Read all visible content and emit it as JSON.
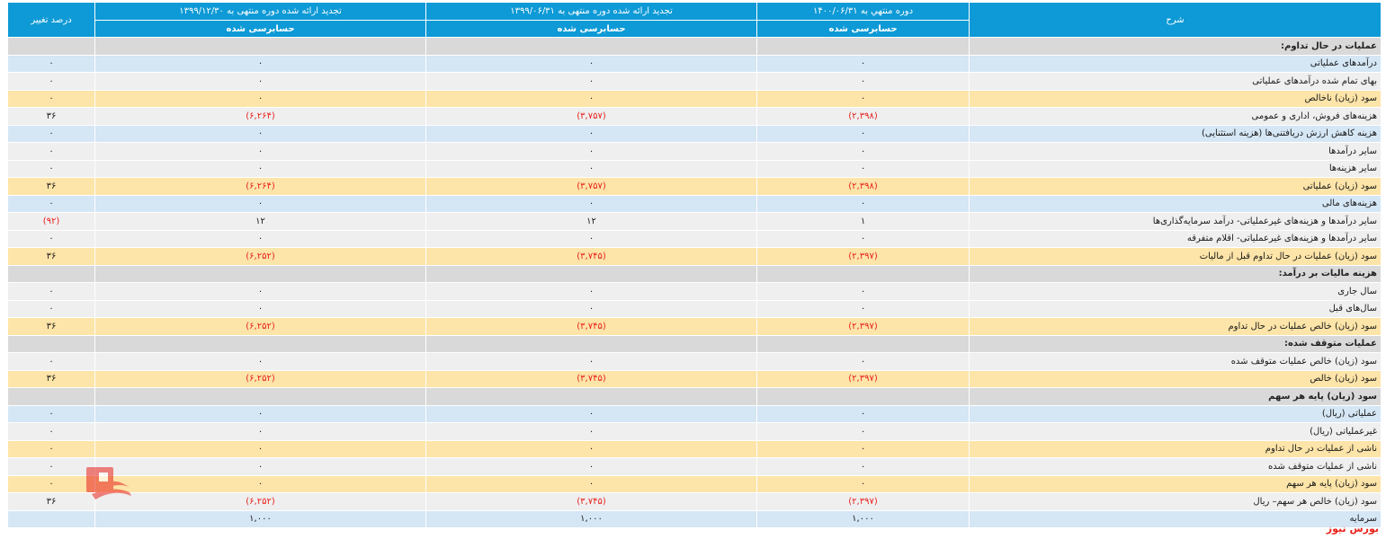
{
  "header": {
    "col_desc": "شرح",
    "col_p1": "دوره منتهي به ۱۴۰۰/۰۶/۳۱",
    "col_p2": "تجدید ارائه شده دوره منتهی به ۱۳۹۹/۰۶/۳۱",
    "col_p3": "تجدید ارائه شده دوره منتهی به ۱۳۹۹/۱۲/۳۰",
    "col_change": "درصد تغییر",
    "audit_p1": "حسابرسی شده",
    "audit_p2": "حسابرسی شده",
    "audit_p3": "حسابرسی شده"
  },
  "rows": [
    {
      "type": "section",
      "desc": "عملیات در حال تداوم:",
      "p1": "",
      "p2": "",
      "p3": "",
      "change": ""
    },
    {
      "type": "blue",
      "desc": "درآمدهای عملیاتی",
      "p1": "۰",
      "p2": "۰",
      "p3": "۰",
      "change": "۰"
    },
    {
      "type": "grey",
      "desc": "بهای تمام شده درآمدهای عملیاتی",
      "p1": "۰",
      "p2": "۰",
      "p3": "۰",
      "change": "۰"
    },
    {
      "type": "yellow",
      "desc": "سود (زیان) ناخالص",
      "p1": "۰",
      "p2": "۰",
      "p3": "۰",
      "change": "۰"
    },
    {
      "type": "grey",
      "desc": "هزینه‌های فروش، اداری و عمومی",
      "p1": "(۲,۳۹۸)",
      "p2": "(۳,۷۵۷)",
      "p3": "(۶,۲۶۴)",
      "change": "۳۶"
    },
    {
      "type": "blue",
      "desc": "هزینه کاهش ارزش دریافتنی‌ها (هزینه استثنایی)",
      "p1": "۰",
      "p2": "۰",
      "p3": "۰",
      "change": "۰"
    },
    {
      "type": "grey",
      "desc": "سایر درآمدها",
      "p1": "۰",
      "p2": "۰",
      "p3": "۰",
      "change": "۰"
    },
    {
      "type": "grey",
      "desc": "سایر هزینه‌ها",
      "p1": "۰",
      "p2": "۰",
      "p3": "۰",
      "change": "۰"
    },
    {
      "type": "yellow",
      "desc": "سود (زیان) عملیاتی",
      "p1": "(۲,۳۹۸)",
      "p2": "(۳,۷۵۷)",
      "p3": "(۶,۲۶۴)",
      "change": "۳۶"
    },
    {
      "type": "blue",
      "desc": "هزینه‌های مالی",
      "p1": "۰",
      "p2": "۰",
      "p3": "۰",
      "change": "۰"
    },
    {
      "type": "grey",
      "desc": "سایر درآمدها و هزینه‌های غیرعملیاتی- درآمد سرمایه‌گذاری‌ها",
      "p1": "۱",
      "p2": "۱۲",
      "p3": "۱۲",
      "change": "(۹۲)"
    },
    {
      "type": "grey",
      "desc": "سایر درآمدها و هزینه‌های غیرعملیاتی- اقلام متفرقه",
      "p1": "۰",
      "p2": "۰",
      "p3": "۰",
      "change": "۰"
    },
    {
      "type": "yellow",
      "desc": "سود (زیان) عملیات در حال تداوم قبل از مالیات",
      "p1": "(۲,۳۹۷)",
      "p2": "(۳,۷۴۵)",
      "p3": "(۶,۲۵۲)",
      "change": "۳۶"
    },
    {
      "type": "section",
      "desc": "هزینه مالیات بر درآمد:",
      "p1": "",
      "p2": "",
      "p3": "",
      "change": ""
    },
    {
      "type": "grey",
      "desc": "سال جاری",
      "p1": "۰",
      "p2": "۰",
      "p3": "۰",
      "change": "۰"
    },
    {
      "type": "grey",
      "desc": "سال‌های قبل",
      "p1": "۰",
      "p2": "۰",
      "p3": "۰",
      "change": "۰"
    },
    {
      "type": "yellow",
      "desc": "سود (زیان) خالص عملیات در حال تداوم",
      "p1": "(۲,۳۹۷)",
      "p2": "(۳,۷۴۵)",
      "p3": "(۶,۲۵۲)",
      "change": "۳۶"
    },
    {
      "type": "section",
      "desc": "عملیات متوقف شده:",
      "p1": "",
      "p2": "",
      "p3": "",
      "change": ""
    },
    {
      "type": "grey",
      "desc": "سود (زیان) خالص عملیات متوقف شده",
      "p1": "۰",
      "p2": "۰",
      "p3": "۰",
      "change": "۰"
    },
    {
      "type": "yellow",
      "desc": "سود (زیان) خالص",
      "p1": "(۲,۳۹۷)",
      "p2": "(۳,۷۴۵)",
      "p3": "(۶,۲۵۲)",
      "change": "۳۶"
    },
    {
      "type": "section",
      "desc": "سود (زیان) پایه هر سهم",
      "p1": "",
      "p2": "",
      "p3": "",
      "change": ""
    },
    {
      "type": "blue",
      "desc": "عملیاتی (ریال)",
      "p1": "۰",
      "p2": "۰",
      "p3": "۰",
      "change": "۰"
    },
    {
      "type": "grey",
      "desc": "غیرعملیاتی (ریال)",
      "p1": "۰",
      "p2": "۰",
      "p3": "۰",
      "change": "۰"
    },
    {
      "type": "yellow",
      "desc": "ناشی از عملیات در حال تداوم",
      "p1": "۰",
      "p2": "۰",
      "p3": "۰",
      "change": "۰"
    },
    {
      "type": "grey",
      "desc": "ناشی از عملیات متوقف شده",
      "p1": "۰",
      "p2": "۰",
      "p3": "۰",
      "change": "۰"
    },
    {
      "type": "yellow",
      "desc": "سود (زیان) پایه هر سهم",
      "p1": "۰",
      "p2": "۰",
      "p3": "۰",
      "change": "۰"
    },
    {
      "type": "grey",
      "desc": "سود (زیان) خالص هر سهم– ریال",
      "p1": "(۲,۳۹۷)",
      "p2": "(۳,۷۴۵)",
      "p3": "(۶,۲۵۲)",
      "change": "۳۶"
    },
    {
      "type": "blue",
      "desc": "سرمایه",
      "p1": "۱,۰۰۰",
      "p2": "۱,۰۰۰",
      "p3": "۱,۰۰۰",
      "change": ""
    }
  ],
  "watermark": {
    "text": "بورس نیوز",
    "icon": "boursnews-logo-icon",
    "color": "#e8221c"
  },
  "footer": {
    "brand": "بورس نیوز"
  }
}
